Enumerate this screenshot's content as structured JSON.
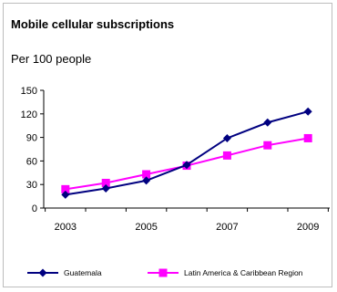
{
  "chart_data": {
    "type": "line",
    "title": "Mobile cellular subscriptions",
    "subtitle": "Per 100 people",
    "x": [
      2003,
      2004,
      2005,
      2006,
      2007,
      2008,
      2009
    ],
    "x_tick_labels": [
      "2003",
      "2005",
      "2007",
      "2009"
    ],
    "y_tick_labels": [
      "0",
      "30",
      "60",
      "90",
      "120",
      "150"
    ],
    "ylim": [
      0,
      150
    ],
    "grid": false,
    "legend_position": "bottom",
    "series": [
      {
        "name": "Guatemala",
        "color": "#000080",
        "marker": "diamond",
        "values": [
          17,
          25,
          35,
          55,
          89,
          109,
          123
        ]
      },
      {
        "name": "Latin America & Caribbean Region",
        "color": "#ff00ff",
        "marker": "square",
        "values": [
          24,
          32,
          43,
          54,
          67,
          80,
          89
        ]
      }
    ]
  }
}
